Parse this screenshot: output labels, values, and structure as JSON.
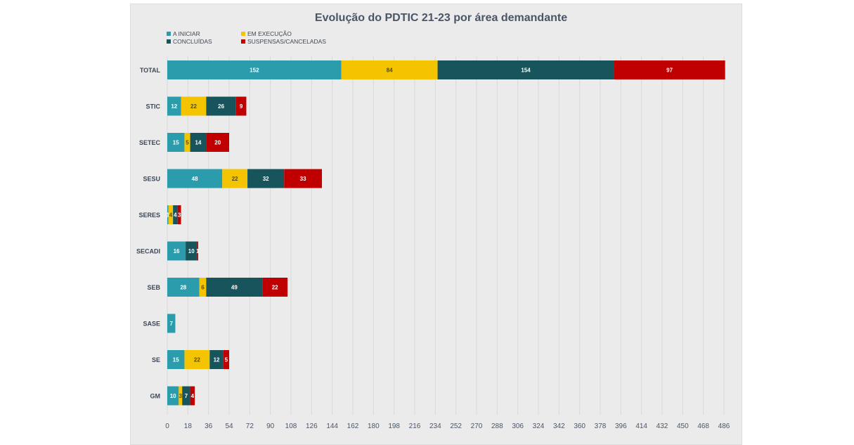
{
  "chart_data": {
    "type": "bar",
    "orientation": "horizontal",
    "stacked": true,
    "title": "Evolução do PDTIC 21-23 por área demandante",
    "categories": [
      "TOTAL",
      "STIC",
      "SETEC",
      "SESU",
      "SERES",
      "SECADI",
      "SEB",
      "SASE",
      "SE",
      "GM"
    ],
    "series": [
      {
        "name": "A INICIAR",
        "color": "#2a9cac",
        "values": [
          152,
          12,
          15,
          48,
          1,
          16,
          28,
          7,
          15,
          10
        ]
      },
      {
        "name": "EM EXECUÇÃO",
        "color": "#f5c400",
        "values": [
          84,
          22,
          5,
          22,
          4,
          0,
          6,
          0,
          22,
          3
        ]
      },
      {
        "name": "CONCLUÍDAS",
        "color": "#17545c",
        "values": [
          154,
          26,
          14,
          32,
          4,
          10,
          49,
          0,
          12,
          7
        ]
      },
      {
        "name": "SUSPENSAS/CANCELADAS",
        "color": "#c00000",
        "values": [
          97,
          9,
          20,
          33,
          3,
          1,
          22,
          0,
          5,
          4
        ]
      }
    ],
    "xlim": [
      0,
      486
    ],
    "xticks": [
      0,
      18,
      36,
      54,
      72,
      90,
      108,
      126,
      144,
      162,
      180,
      198,
      216,
      234,
      252,
      270,
      288,
      306,
      324,
      342,
      360,
      378,
      396,
      414,
      432,
      450,
      468,
      486
    ],
    "legend": "top-left",
    "grid": "vertical"
  }
}
